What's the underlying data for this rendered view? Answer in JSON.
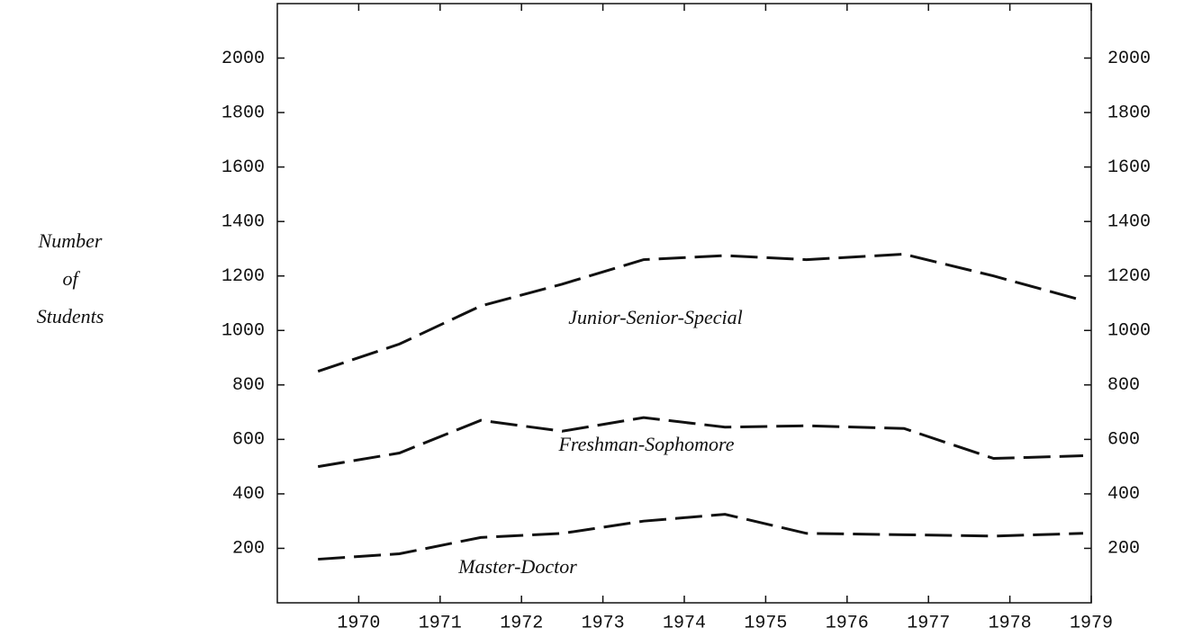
{
  "chart_data": {
    "type": "line",
    "ylabel": [
      "Number",
      "of",
      "Students"
    ],
    "xlim": [
      1969,
      1979
    ],
    "xticks": [
      1970,
      1971,
      1972,
      1973,
      1974,
      1975,
      1976,
      1977,
      1978,
      1979
    ],
    "ylim": [
      0,
      2200
    ],
    "yticks": [
      200,
      400,
      600,
      800,
      1000,
      1200,
      1400,
      1600,
      1800,
      2000
    ],
    "x": [
      1969.5,
      1970.5,
      1971.5,
      1972.5,
      1973.5,
      1974.5,
      1975.5,
      1976.7,
      1977.8,
      1978.9
    ],
    "series": [
      {
        "name": "Junior-Senior-Special",
        "color": "#111111",
        "values": [
          850,
          950,
          1090,
          1170,
          1260,
          1275,
          1260,
          1280,
          1200,
          1110
        ]
      },
      {
        "name": "Freshman-Sophomore",
        "color": "#111111",
        "values": [
          500,
          550,
          670,
          630,
          680,
          645,
          650,
          640,
          530,
          540
        ]
      },
      {
        "name": "Master-Doctor",
        "color": "#111111",
        "values": [
          160,
          180,
          240,
          255,
          300,
          325,
          255,
          250,
          245,
          255
        ]
      }
    ]
  }
}
